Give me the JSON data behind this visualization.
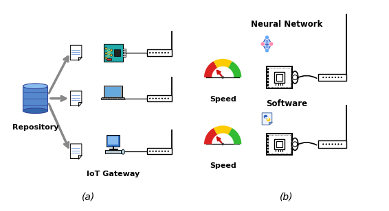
{
  "bg_color": "#ffffff",
  "label_a": "(a)",
  "label_b": "(b)",
  "label_repository": "Repository",
  "label_iot": "IoT Gateway",
  "label_neural": "Neural Network",
  "label_software": "Software",
  "label_speed1": "Speed",
  "label_speed2": "Speed",
  "fig_width": 5.66,
  "fig_height": 3.08,
  "dpi": 100,
  "xlim": [
    0,
    11
  ],
  "ylim": [
    0,
    6
  ]
}
